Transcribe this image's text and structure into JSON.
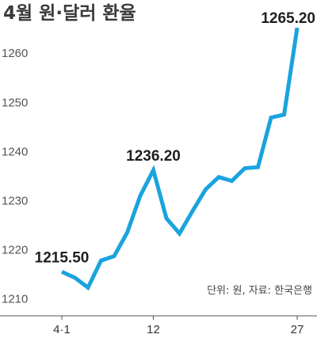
{
  "chart_data": {
    "type": "line",
    "title": "4월 원·달러 환율",
    "xlabel": "",
    "ylabel": "",
    "source_note": "단위: 원, 자료: 한국은행",
    "ylim": [
      1208,
      1266
    ],
    "y_ticks": [
      1210,
      1220,
      1230,
      1240,
      1250,
      1260
    ],
    "x_ticks": [
      {
        "index": 0,
        "label": "4·1"
      },
      {
        "index": 7,
        "label": "12"
      },
      {
        "index": 18,
        "label": "27"
      }
    ],
    "grid": false,
    "series": [
      {
        "name": "",
        "color": "#1aa3de",
        "values": [
          1215.5,
          1214.3,
          1212.3,
          1217.8,
          1218.7,
          1223.5,
          1231.0,
          1236.2,
          1226.4,
          1223.3,
          1227.9,
          1232.3,
          1234.8,
          1234.0,
          1236.6,
          1236.8,
          1246.9,
          1247.5,
          1265.2
        ]
      }
    ],
    "data_labels": [
      {
        "index": 0,
        "text": "1215.50"
      },
      {
        "index": 7,
        "text": "1236.20"
      },
      {
        "index": 18,
        "text": "1265.20"
      }
    ]
  }
}
